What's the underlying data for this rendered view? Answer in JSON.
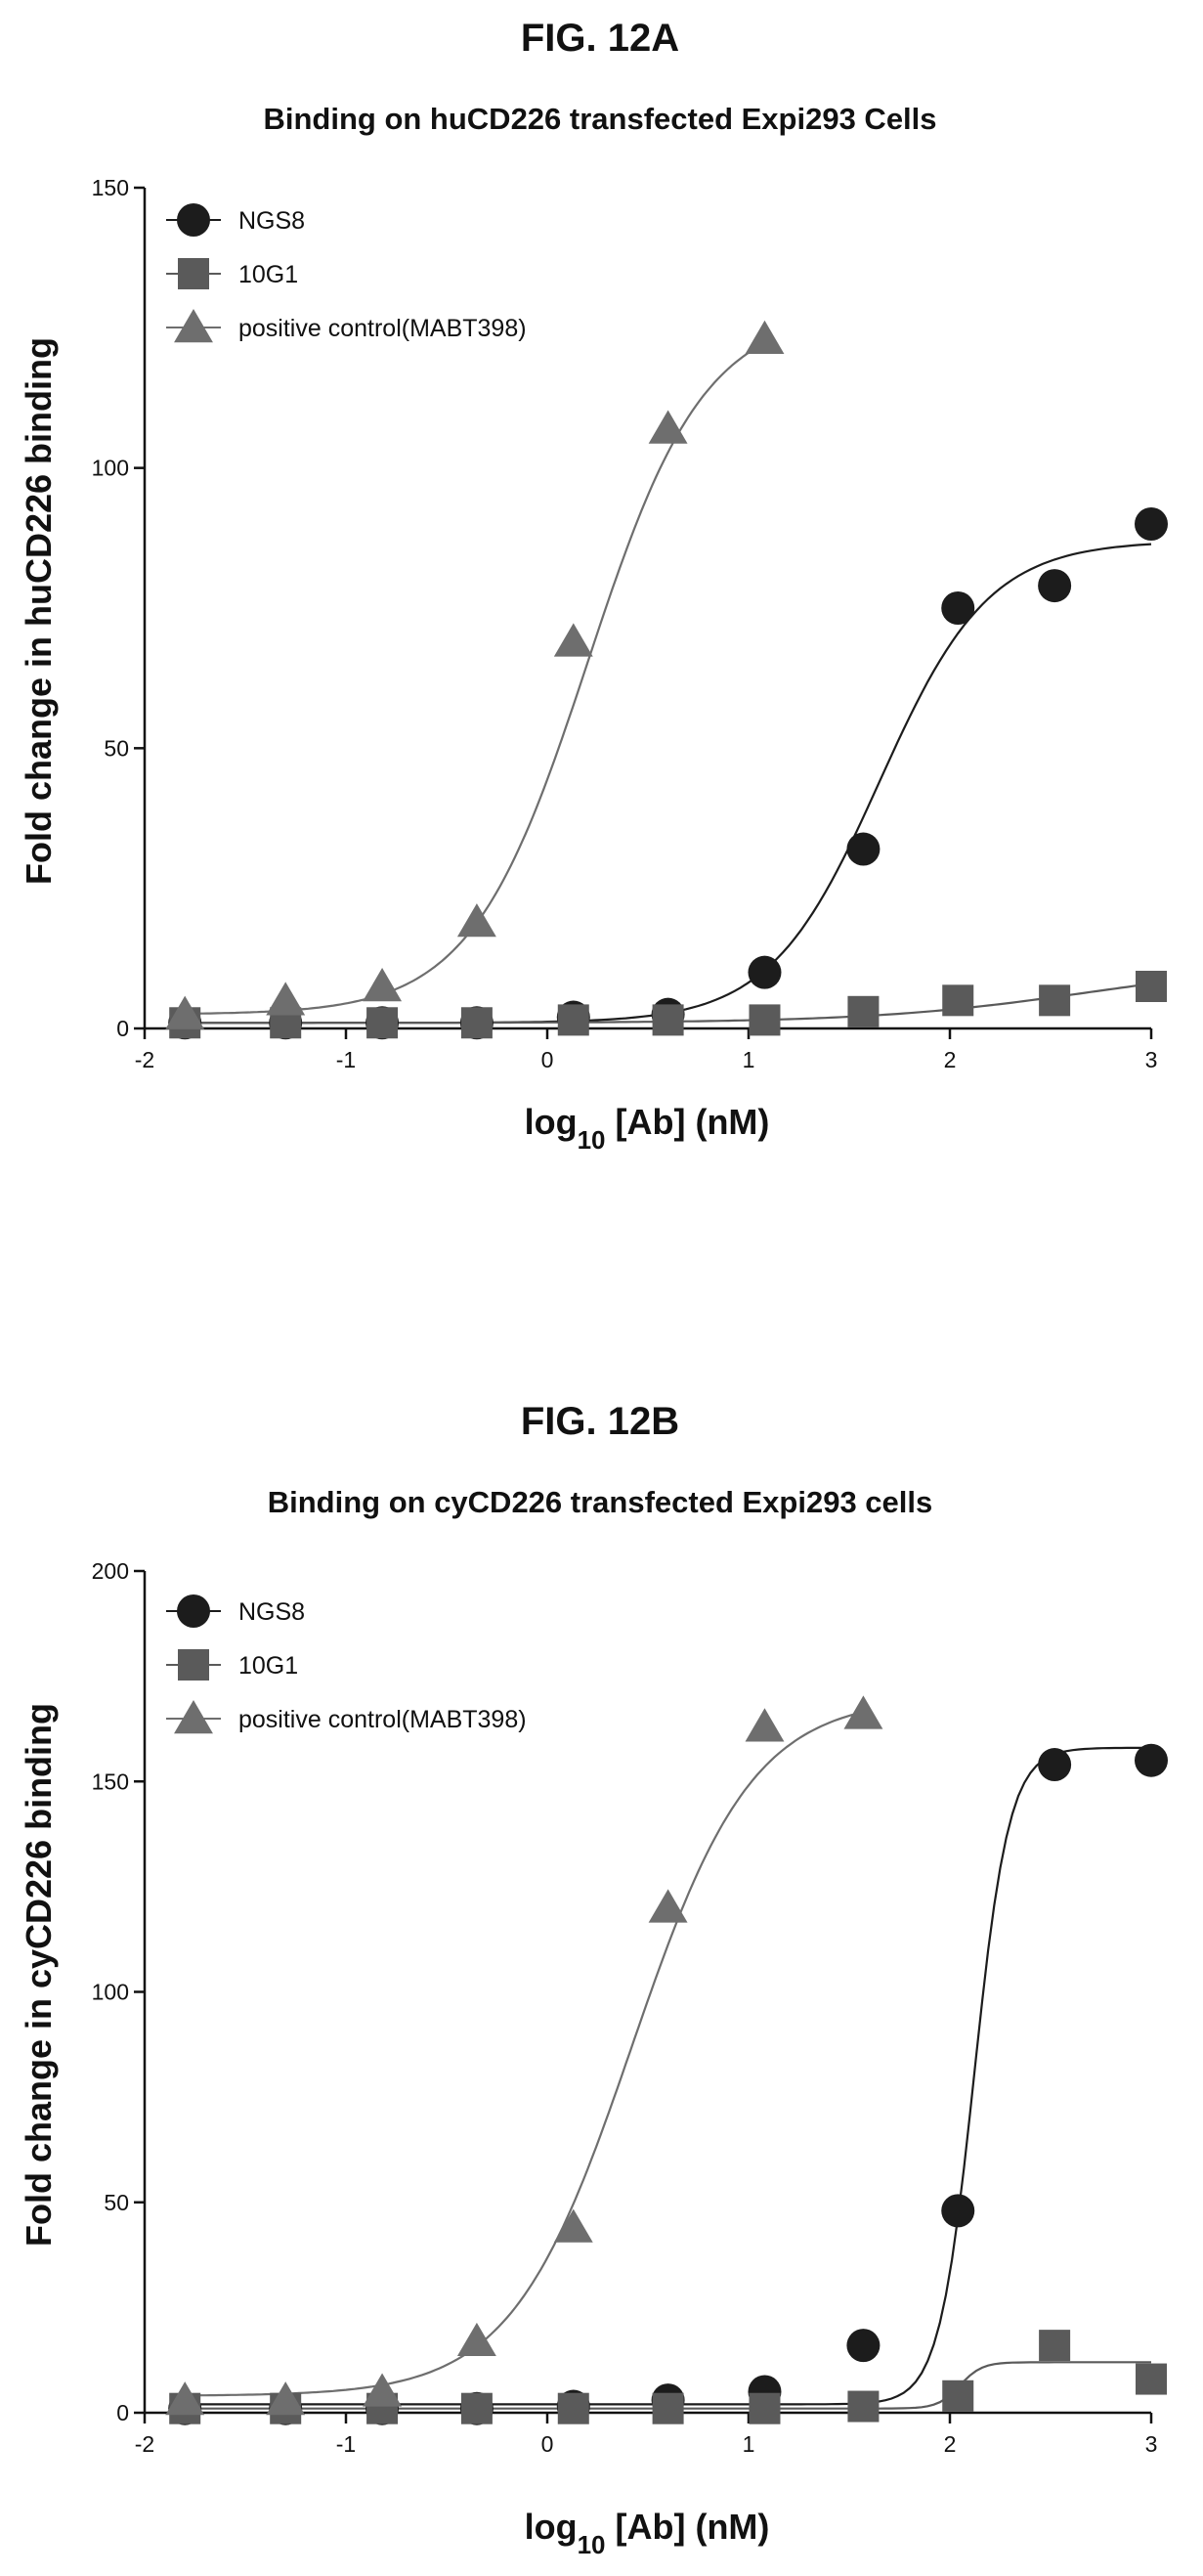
{
  "chart_data": [
    {
      "figure_label": "FIG. 12A",
      "type": "scatter",
      "title": "Binding on huCD226 transfected Expi293 Cells",
      "xlabel_main": "log",
      "xlabel_sub": "10",
      "xlabel_rest": " [Ab] (nM)",
      "ylabel": "Fold change in huCD226 binding",
      "xlim": [
        -2,
        3
      ],
      "ylim": [
        0,
        150
      ],
      "xticks": [
        -2,
        -1,
        0,
        1,
        2,
        3
      ],
      "yticks": [
        0,
        50,
        100,
        150
      ],
      "legend_position": "top-left",
      "series": [
        {
          "name": "NGS8",
          "marker": "circle",
          "color": "#1c1c1c",
          "x": [
            -1.8,
            -1.3,
            -0.82,
            -0.35,
            0.13,
            0.6,
            1.08,
            1.57,
            2.04,
            2.52,
            3.0
          ],
          "y": [
            1,
            1,
            1,
            1,
            2,
            2.5,
            10,
            32,
            75,
            79,
            90
          ],
          "fit": {
            "bottom": 1,
            "top": 87,
            "ec50_log": 1.65,
            "hill": 1.6,
            "x_range": [
              -1.8,
              3.0
            ]
          }
        },
        {
          "name": "10G1",
          "marker": "square",
          "color": "#5a5a5a",
          "x": [
            -1.8,
            -1.3,
            -0.82,
            -0.35,
            0.13,
            0.6,
            1.08,
            1.57,
            2.04,
            2.52,
            3.0
          ],
          "y": [
            1,
            1,
            1,
            1,
            1.5,
            1.5,
            1.5,
            3,
            5,
            5,
            7.5
          ],
          "fit": {
            "bottom": 1,
            "top": 12,
            "ec50_log": 2.7,
            "hill": 0.8,
            "x_range": [
              -1.8,
              3.0
            ]
          }
        },
        {
          "name": "positive control(MABT398)",
          "marker": "triangle",
          "color": "#6e6e6e",
          "x": [
            -1.8,
            -1.3,
            -0.82,
            -0.35,
            0.13,
            0.6,
            1.08
          ],
          "y": [
            2.5,
            5,
            7.5,
            19,
            69,
            107,
            123
          ],
          "fit": {
            "bottom": 2.5,
            "top": 128,
            "ec50_log": 0.2,
            "hill": 1.5,
            "x_range": [
              -1.8,
              1.08
            ]
          }
        }
      ]
    },
    {
      "figure_label": "FIG. 12B",
      "type": "scatter",
      "title": "Binding on cyCD226 transfected Expi293 cells",
      "xlabel_main": "log",
      "xlabel_sub": "10",
      "xlabel_rest": " [Ab] (nM)",
      "ylabel": "Fold change in cyCD226 binding",
      "xlim": [
        -2,
        3
      ],
      "ylim": [
        0,
        200
      ],
      "xticks": [
        -2,
        -1,
        0,
        1,
        2,
        3
      ],
      "yticks": [
        0,
        50,
        100,
        150,
        200
      ],
      "legend_position": "top-left",
      "series": [
        {
          "name": "NGS8",
          "marker": "circle",
          "color": "#1c1c1c",
          "x": [
            -1.8,
            -1.3,
            -0.82,
            -0.35,
            0.13,
            0.6,
            1.08,
            1.57,
            2.04,
            2.52,
            3.0
          ],
          "y": [
            1,
            1,
            1,
            1,
            1.5,
            3,
            5,
            16,
            48,
            154,
            155
          ],
          "fit": {
            "bottom": 2,
            "top": 158,
            "ec50_log": 2.12,
            "hill": 5.0,
            "x_range": [
              -1.8,
              3.0
            ]
          }
        },
        {
          "name": "10G1",
          "marker": "square",
          "color": "#5a5a5a",
          "x": [
            -1.8,
            -1.3,
            -0.82,
            -0.35,
            0.13,
            0.6,
            1.08,
            1.57,
            2.04,
            2.52,
            3.0
          ],
          "y": [
            1,
            1,
            1,
            1,
            1,
            1,
            1,
            1.5,
            4,
            16,
            8
          ],
          "fit": {
            "bottom": 1,
            "top": 12,
            "ec50_log": 2.05,
            "hill": 8.0,
            "x_range": [
              -1.8,
              3.0
            ]
          }
        },
        {
          "name": "positive control(MABT398)",
          "marker": "triangle",
          "color": "#6e6e6e",
          "x": [
            -1.8,
            -1.3,
            -0.82,
            -0.35,
            0.13,
            0.6,
            1.08,
            1.57
          ],
          "y": [
            3,
            3,
            5,
            17,
            44,
            120,
            163,
            166
          ],
          "fit": {
            "bottom": 4,
            "top": 170,
            "ec50_log": 0.42,
            "hill": 1.45,
            "x_range": [
              -1.8,
              1.57
            ]
          }
        }
      ]
    }
  ]
}
